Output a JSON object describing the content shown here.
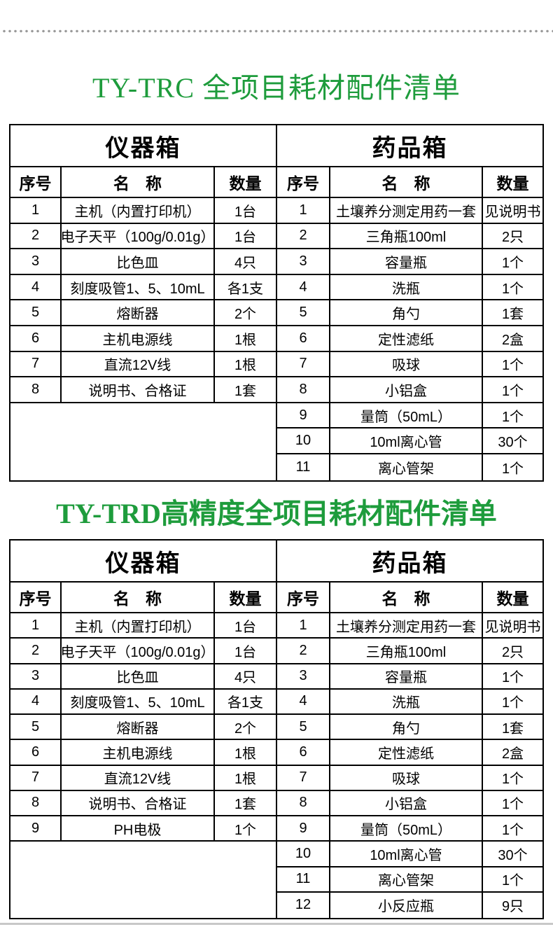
{
  "colors": {
    "title_green": "#1e9c3c",
    "table_border": "#000000",
    "dot_gray": "#9a9a9a",
    "bottom_line_gray": "#c8c8c8"
  },
  "section1": {
    "title": "TY-TRC 全项目耗材配件清单",
    "instrument_box": {
      "title": "仪器箱",
      "headers": [
        "序号",
        "名　称",
        "数量"
      ],
      "rows": [
        [
          "1",
          "主机（内置打印机）",
          "1台"
        ],
        [
          "2",
          "电子天平（100g/0.01g）",
          "1台"
        ],
        [
          "3",
          "比色皿",
          "4只"
        ],
        [
          "4",
          "刻度吸管1、5、10mL",
          "各1支"
        ],
        [
          "5",
          "熔断器",
          "2个"
        ],
        [
          "6",
          "主机电源线",
          "1根"
        ],
        [
          "7",
          "直流12V线",
          "1根"
        ],
        [
          "8",
          "说明书、合格证",
          "1套"
        ]
      ]
    },
    "medicine_box": {
      "title": "药品箱",
      "headers": [
        "序号",
        "名　称",
        "数量"
      ],
      "rows": [
        [
          "1",
          "土壤养分测定用药一套",
          "见说明书"
        ],
        [
          "2",
          "三角瓶100ml",
          "2只"
        ],
        [
          "3",
          "容量瓶",
          "1个"
        ],
        [
          "4",
          "洗瓶",
          "1个"
        ],
        [
          "5",
          "角勺",
          "1套"
        ],
        [
          "6",
          "定性滤纸",
          "2盒"
        ],
        [
          "7",
          "吸球",
          "1个"
        ],
        [
          "8",
          "小铝盒",
          "1个"
        ],
        [
          "9",
          "量筒（50mL）",
          "1个"
        ],
        [
          "10",
          "10ml离心管",
          "30个"
        ],
        [
          "11",
          "离心管架",
          "1个"
        ]
      ]
    }
  },
  "section2": {
    "title": "TY-TRD高精度全项目耗材配件清单",
    "instrument_box": {
      "title": "仪器箱",
      "headers": [
        "序号",
        "名　称",
        "数量"
      ],
      "rows": [
        [
          "1",
          "主机（内置打印机）",
          "1台"
        ],
        [
          "2",
          "电子天平（100g/0.01g）",
          "1台"
        ],
        [
          "3",
          "比色皿",
          "4只"
        ],
        [
          "4",
          "刻度吸管1、5、10mL",
          "各1支"
        ],
        [
          "5",
          "熔断器",
          "2个"
        ],
        [
          "6",
          "主机电源线",
          "1根"
        ],
        [
          "7",
          "直流12V线",
          "1根"
        ],
        [
          "8",
          "说明书、合格证",
          "1套"
        ],
        [
          "9",
          "PH电极",
          "1个"
        ]
      ]
    },
    "medicine_box": {
      "title": "药品箱",
      "headers": [
        "序号",
        "名　称",
        "数量"
      ],
      "rows": [
        [
          "1",
          "土壤养分测定用药一套",
          "见说明书"
        ],
        [
          "2",
          "三角瓶100ml",
          "2只"
        ],
        [
          "3",
          "容量瓶",
          "1个"
        ],
        [
          "4",
          "洗瓶",
          "1个"
        ],
        [
          "5",
          "角勺",
          "1套"
        ],
        [
          "6",
          "定性滤纸",
          "2盒"
        ],
        [
          "7",
          "吸球",
          "1个"
        ],
        [
          "8",
          "小铝盒",
          "1个"
        ],
        [
          "9",
          "量筒（50mL）",
          "1个"
        ],
        [
          "10",
          "10ml离心管",
          "30个"
        ],
        [
          "11",
          "离心管架",
          "1个"
        ],
        [
          "12",
          "小反应瓶",
          "9只"
        ]
      ]
    }
  }
}
